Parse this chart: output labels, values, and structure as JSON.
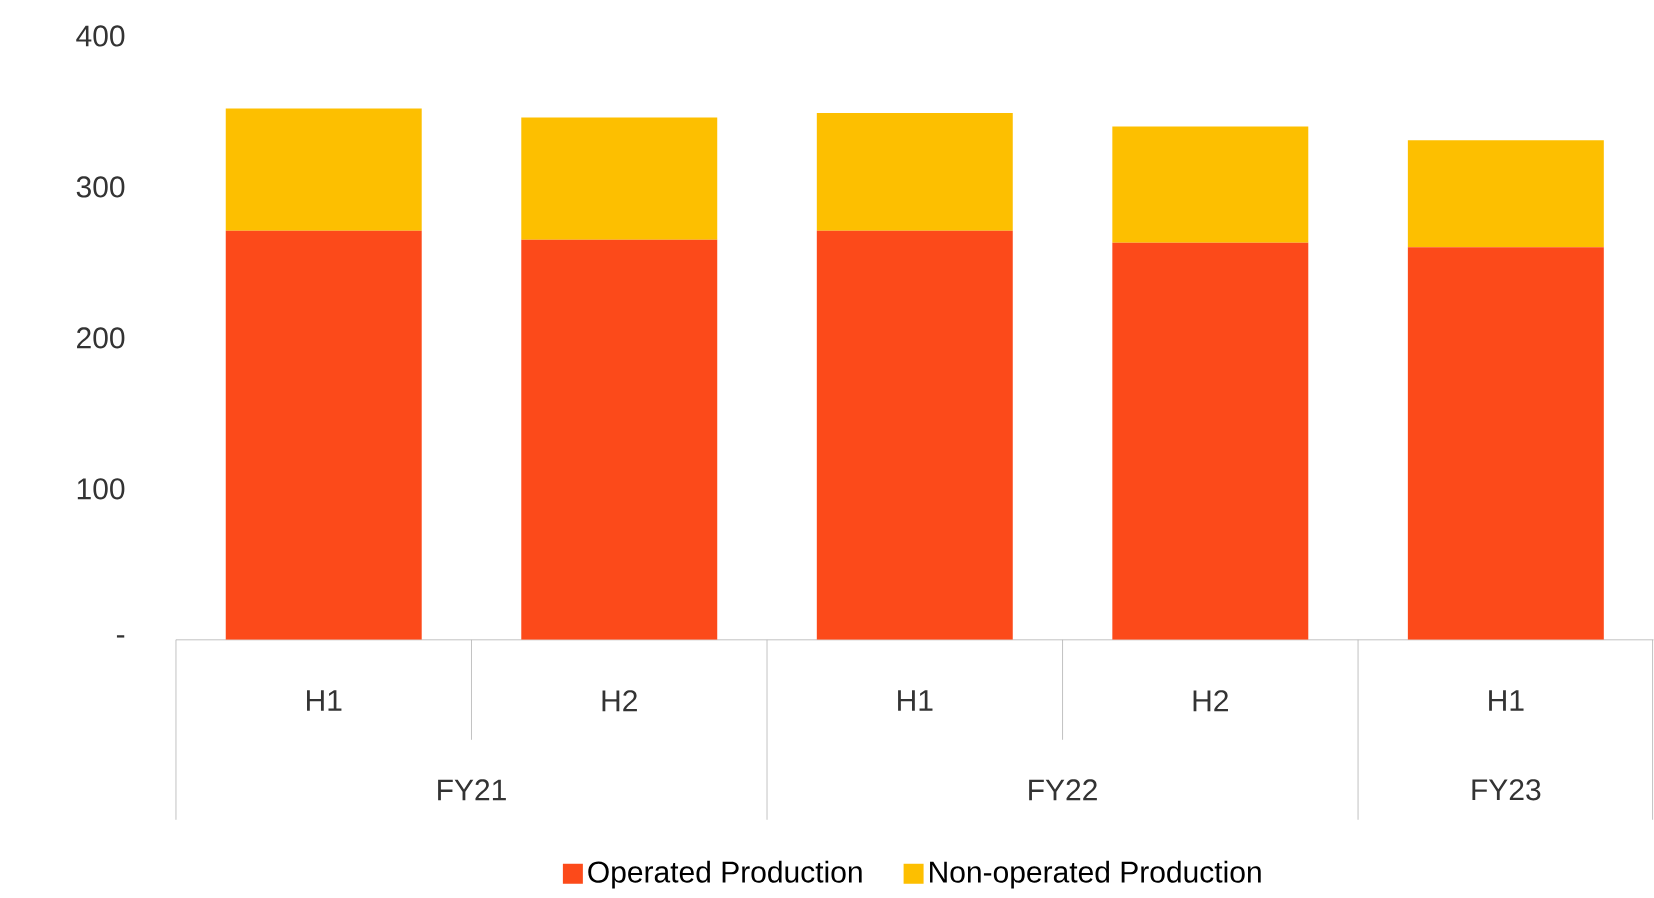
{
  "chart_data": {
    "type": "bar",
    "stacked": true,
    "categories": [
      "H1",
      "H2",
      "H1",
      "H2",
      "H1"
    ],
    "annotations": [
      "FY21",
      "FY22",
      "FY23"
    ],
    "series": [
      {
        "name": "Operated Production",
        "color": "#fc4a1a",
        "values": [
          271,
          265,
          271,
          263,
          260
        ]
      },
      {
        "name": "Non-operated Production",
        "color": "#fdbf00",
        "values": [
          81,
          81,
          78,
          77,
          71
        ]
      }
    ],
    "ylim": [
      0,
      400
    ],
    "yticks": [
      {
        "value": 0,
        "label": "-"
      },
      100,
      200,
      300,
      400
    ],
    "grid": false,
    "legend": "bottom"
  }
}
